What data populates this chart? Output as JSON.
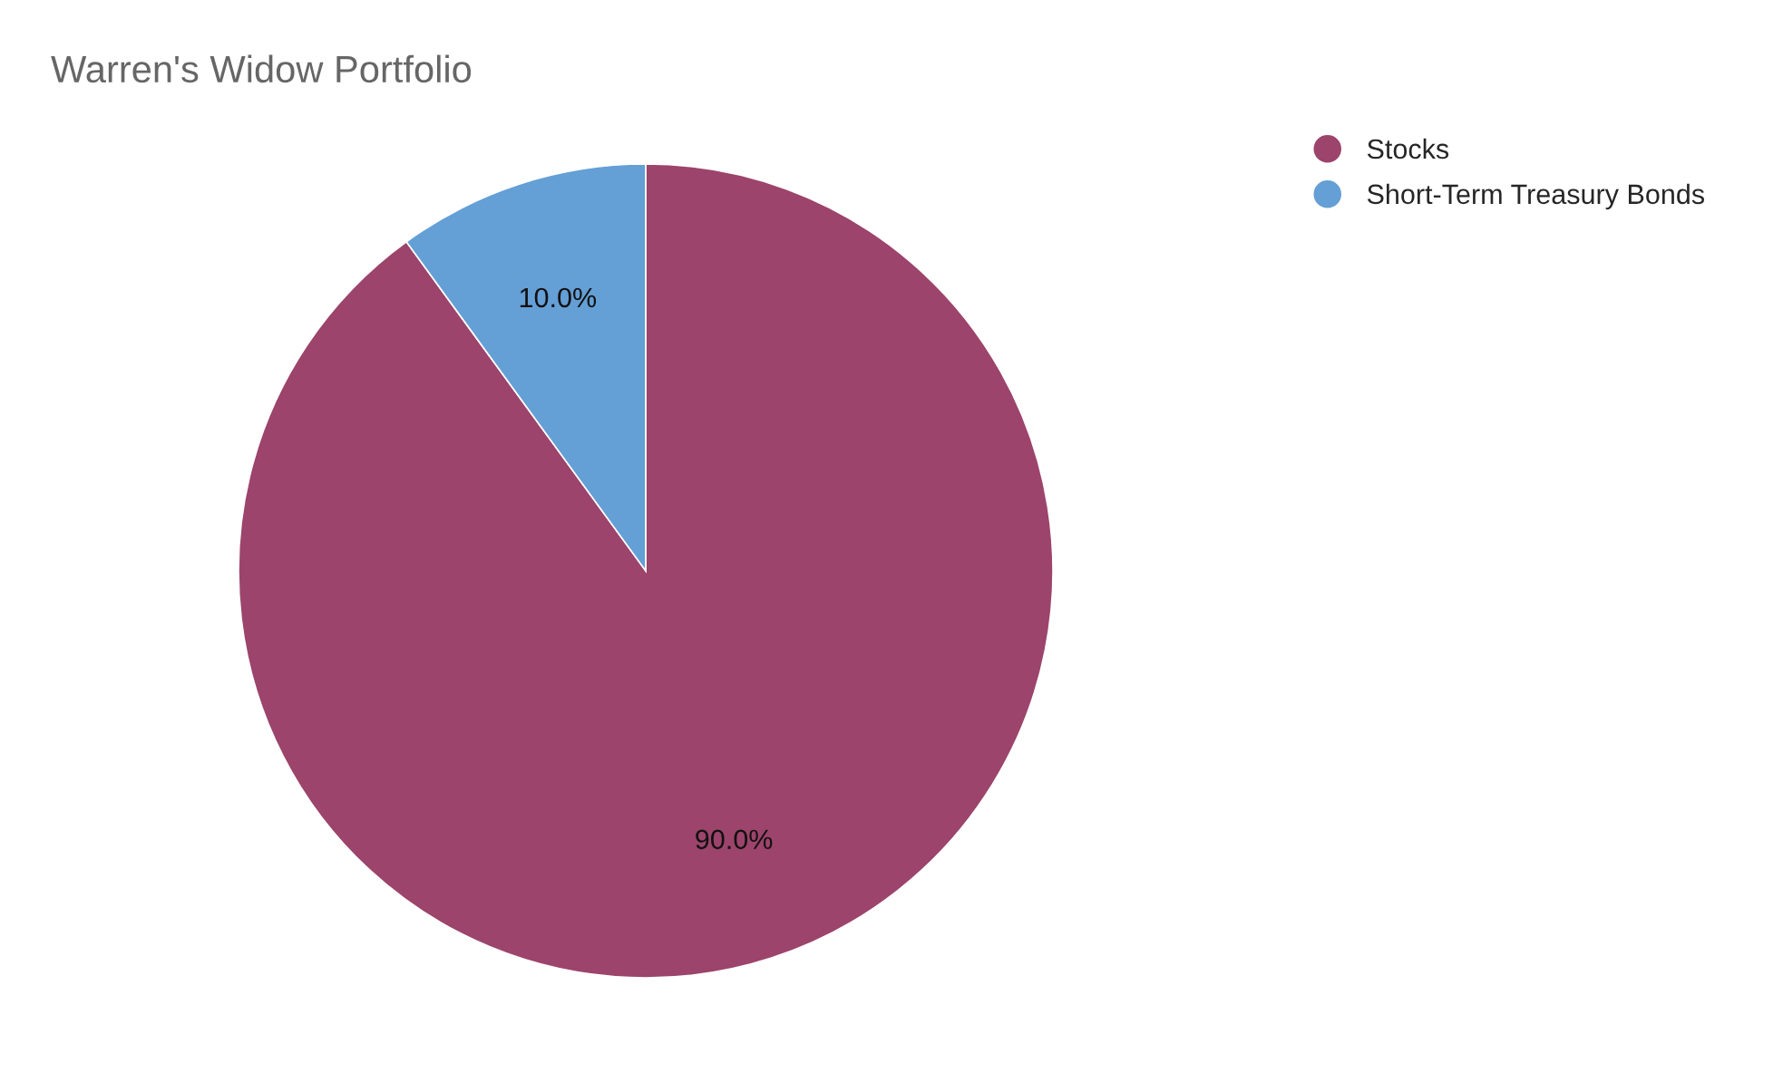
{
  "chart_data": {
    "type": "pie",
    "title": "Warren's Widow Portfolio",
    "categories": [
      "Stocks",
      "Short-Term Treasury Bonds"
    ],
    "values": [
      90,
      10
    ],
    "colors": [
      "#9c446b",
      "#649fd6"
    ],
    "value_labels": [
      "90.0%",
      "10.0%"
    ],
    "legend": "top right"
  }
}
